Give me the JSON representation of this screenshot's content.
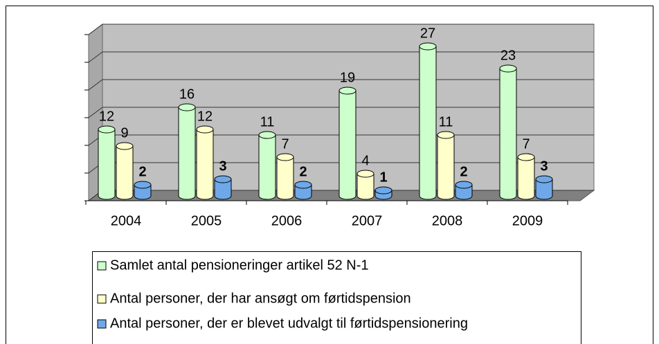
{
  "chart_data": {
    "type": "bar3d",
    "categories": [
      "2004",
      "2005",
      "2006",
      "2007",
      "2008",
      "2009"
    ],
    "series": [
      {
        "name": "Samlet antal pensioneringer artikel 52 N-1",
        "color": "#ccffcc",
        "values": [
          12,
          16,
          11,
          19,
          27,
          23
        ]
      },
      {
        "name": "Antal personer, der har ansøgt om førtidspension",
        "color": "#ffffcc",
        "values": [
          9,
          12,
          7,
          4,
          11,
          7
        ]
      },
      {
        "name": "Antal personer, der er blevet udvalgt til førtidspensionering",
        "color": "#6fa8e8",
        "values": [
          2,
          3,
          2,
          1,
          2,
          3
        ]
      }
    ],
    "ylim": [
      0,
      30
    ],
    "yticks": [
      0,
      5,
      10,
      15,
      20,
      25,
      30
    ],
    "grid": true,
    "legend": "bottom"
  }
}
